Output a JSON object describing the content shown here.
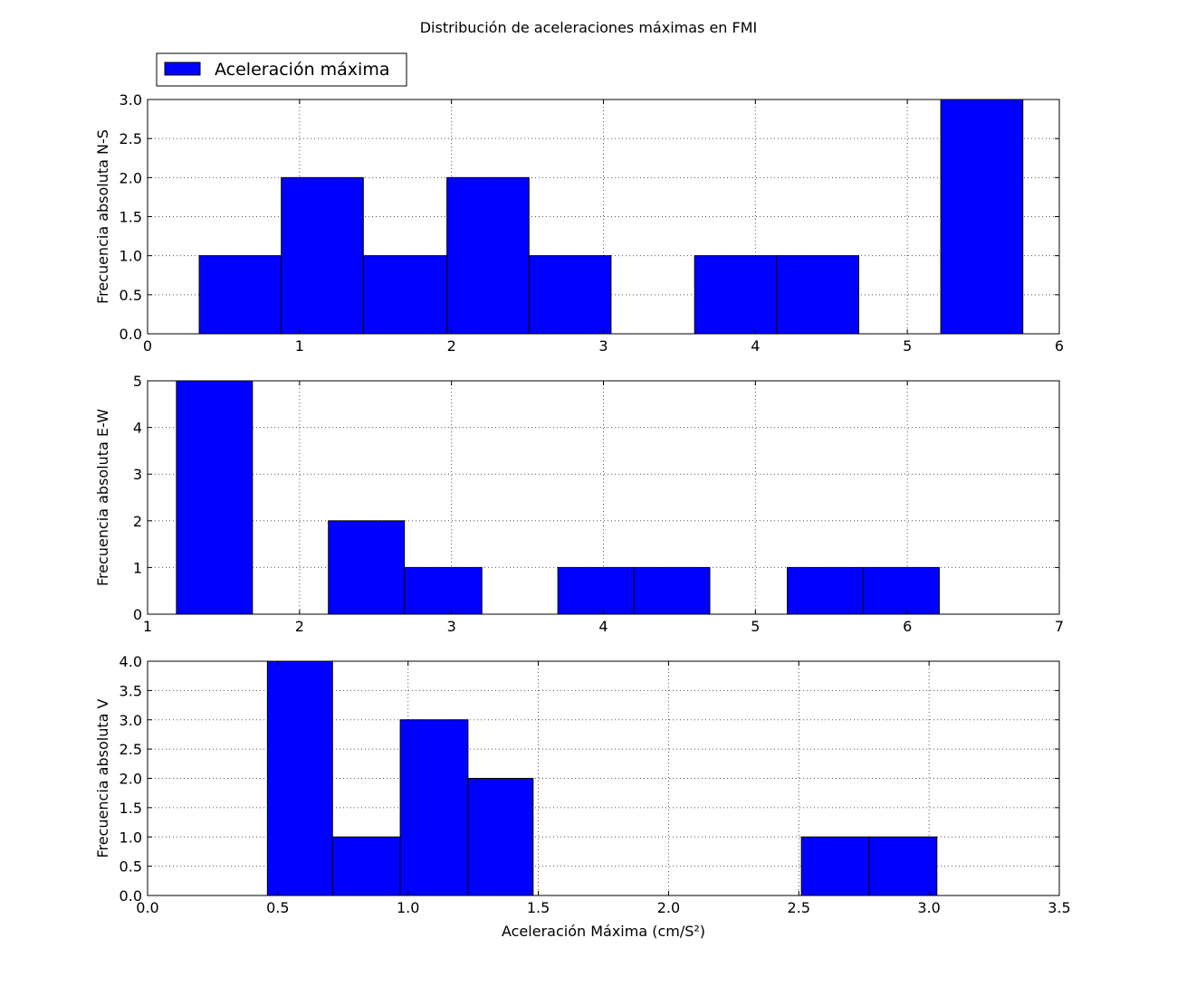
{
  "figure": {
    "title": "Distribución de aceleraciones máximas en FMI",
    "legend_label": "Aceleración máxima",
    "bar_color": "#0000ff",
    "edge_color": "#000000",
    "grid_color": "#555555",
    "background": "#ffffff"
  },
  "chart_data": [
    {
      "type": "bar",
      "title": "",
      "xlabel": "",
      "ylabel": "Frecuencia absoluta N-S",
      "xlim": [
        0,
        6
      ],
      "ylim": [
        0,
        3
      ],
      "xticks": [
        0,
        1,
        2,
        3,
        4,
        5,
        6
      ],
      "xtick_labels": [
        "0",
        "1",
        "2",
        "3",
        "4",
        "5",
        "6"
      ],
      "yticks": [
        0,
        0.5,
        1,
        1.5,
        2,
        2.5,
        3
      ],
      "ytick_labels": [
        "0.0",
        "0.5",
        "1.0",
        "1.5",
        "2.0",
        "2.5",
        "3.0"
      ],
      "grid": true,
      "legend": "top-left",
      "bins": [
        {
          "x0": 0.34,
          "x1": 0.88,
          "value": 1
        },
        {
          "x0": 0.88,
          "x1": 1.42,
          "value": 2
        },
        {
          "x0": 1.42,
          "x1": 1.97,
          "value": 1
        },
        {
          "x0": 1.97,
          "x1": 2.51,
          "value": 2
        },
        {
          "x0": 2.51,
          "x1": 3.05,
          "value": 1
        },
        {
          "x0": 3.05,
          "x1": 3.6,
          "value": 0
        },
        {
          "x0": 3.6,
          "x1": 4.14,
          "value": 1
        },
        {
          "x0": 4.14,
          "x1": 4.68,
          "value": 1
        },
        {
          "x0": 4.68,
          "x1": 5.22,
          "value": 0
        },
        {
          "x0": 5.22,
          "x1": 5.76,
          "value": 3
        }
      ]
    },
    {
      "type": "bar",
      "title": "",
      "xlabel": "",
      "ylabel": "Frecuencia absoluta E-W",
      "xlim": [
        1,
        7
      ],
      "ylim": [
        0,
        5
      ],
      "xticks": [
        1,
        2,
        3,
        4,
        5,
        6,
        7
      ],
      "xtick_labels": [
        "1",
        "2",
        "3",
        "4",
        "5",
        "6",
        "7"
      ],
      "yticks": [
        0,
        1,
        2,
        3,
        4,
        5
      ],
      "ytick_labels": [
        "0",
        "1",
        "2",
        "3",
        "4",
        "5"
      ],
      "grid": true,
      "bins": [
        {
          "x0": 1.19,
          "x1": 1.69,
          "value": 5
        },
        {
          "x0": 1.69,
          "x1": 2.19,
          "value": 0
        },
        {
          "x0": 2.19,
          "x1": 2.69,
          "value": 2
        },
        {
          "x0": 2.69,
          "x1": 3.2,
          "value": 1
        },
        {
          "x0": 3.2,
          "x1": 3.7,
          "value": 0
        },
        {
          "x0": 3.7,
          "x1": 4.2,
          "value": 1
        },
        {
          "x0": 4.2,
          "x1": 4.7,
          "value": 1
        },
        {
          "x0": 4.7,
          "x1": 5.21,
          "value": 0
        },
        {
          "x0": 5.21,
          "x1": 5.71,
          "value": 1
        },
        {
          "x0": 5.71,
          "x1": 6.21,
          "value": 1
        }
      ]
    },
    {
      "type": "bar",
      "title": "",
      "xlabel": "Aceleración Máxima (cm/S²)",
      "ylabel": "Frecuencia absoluta V",
      "xlim": [
        0,
        3.5
      ],
      "ylim": [
        0,
        4
      ],
      "xticks": [
        0,
        0.5,
        1,
        1.5,
        2,
        2.5,
        3,
        3.5
      ],
      "xtick_labels": [
        "0.0",
        "0.5",
        "1.0",
        "1.5",
        "2.0",
        "2.5",
        "3.0",
        "3.5"
      ],
      "yticks": [
        0,
        0.5,
        1,
        1.5,
        2,
        2.5,
        3,
        3.5,
        4
      ],
      "ytick_labels": [
        "0.0",
        "0.5",
        "1.0",
        "1.5",
        "2.0",
        "2.5",
        "3.0",
        "3.5",
        "4.0"
      ],
      "grid": true,
      "bins": [
        {
          "x0": 0.46,
          "x1": 0.71,
          "value": 4
        },
        {
          "x0": 0.71,
          "x1": 0.97,
          "value": 1
        },
        {
          "x0": 0.97,
          "x1": 1.23,
          "value": 3
        },
        {
          "x0": 1.23,
          "x1": 1.48,
          "value": 2
        },
        {
          "x0": 1.48,
          "x1": 1.74,
          "value": 0
        },
        {
          "x0": 1.74,
          "x1": 2.0,
          "value": 0
        },
        {
          "x0": 2.0,
          "x1": 2.26,
          "value": 0
        },
        {
          "x0": 2.26,
          "x1": 2.51,
          "value": 0
        },
        {
          "x0": 2.51,
          "x1": 2.77,
          "value": 1
        },
        {
          "x0": 2.77,
          "x1": 3.03,
          "value": 1
        }
      ]
    }
  ]
}
